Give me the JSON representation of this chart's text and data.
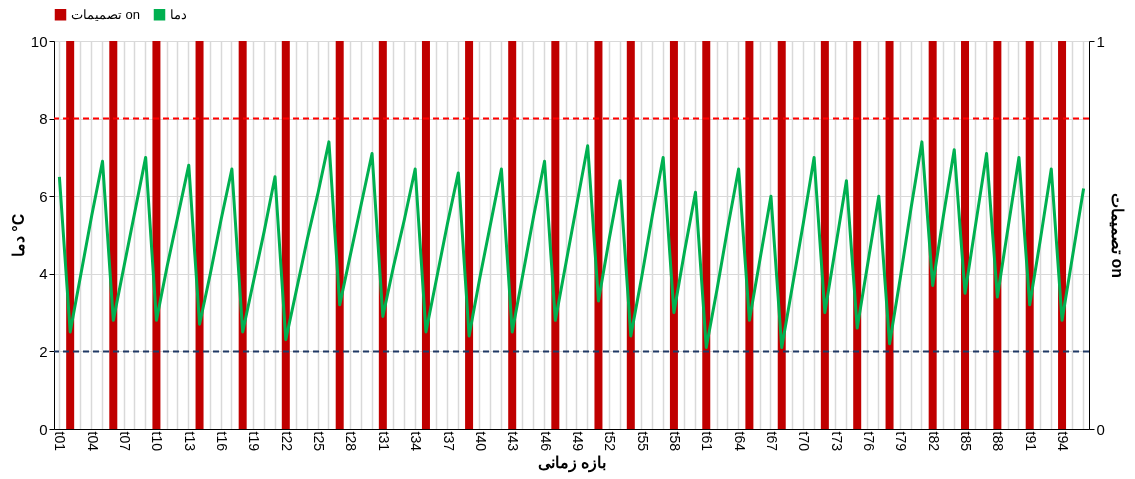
{
  "chart_data": {
    "type": "bar",
    "categories": [
      "t01",
      null,
      null,
      "t04",
      null,
      null,
      "t07",
      null,
      null,
      "t10",
      null,
      null,
      "t13",
      null,
      null,
      "t16",
      null,
      null,
      "t19",
      null,
      null,
      "t22",
      null,
      null,
      "t25",
      null,
      null,
      "t28",
      null,
      null,
      "t31",
      null,
      null,
      "t34",
      null,
      null,
      "t37",
      null,
      null,
      "t40",
      null,
      null,
      "t43",
      null,
      null,
      "t46",
      null,
      null,
      "t49",
      null,
      null,
      "t52",
      null,
      null,
      "t55",
      null,
      null,
      "t58",
      null,
      null,
      "t61",
      null,
      null,
      "t64",
      null,
      null,
      "t67",
      null,
      null,
      "t70",
      null,
      null,
      "t73",
      null,
      null,
      "t76",
      null,
      null,
      "t79",
      null,
      null,
      "t82",
      null,
      null,
      "t85",
      null,
      null,
      "t88",
      null,
      null,
      "t91",
      null,
      null,
      "t94",
      null,
      null
    ],
    "series": [
      {
        "name": "تصمیمات on",
        "axis": "y2",
        "color": "#c00000",
        "values": [
          0,
          1,
          0,
          0,
          0,
          1,
          0,
          0,
          0,
          1,
          0,
          0,
          0,
          1,
          0,
          0,
          0,
          1,
          0,
          0,
          0,
          1,
          0,
          0,
          0,
          0,
          1,
          0,
          0,
          0,
          1,
          0,
          0,
          0,
          1,
          0,
          0,
          0,
          1,
          0,
          0,
          0,
          1,
          0,
          0,
          0,
          1,
          0,
          0,
          0,
          1,
          0,
          0,
          1,
          0,
          0,
          0,
          1,
          0,
          0,
          1,
          0,
          0,
          0,
          1,
          0,
          0,
          1,
          0,
          0,
          0,
          1,
          0,
          0,
          1,
          0,
          0,
          1,
          0,
          0,
          0,
          1,
          0,
          0,
          1,
          0,
          0,
          1,
          0,
          0,
          1,
          0,
          0,
          1,
          0,
          0
        ]
      },
      {
        "name": "دما",
        "type": "line",
        "color": "#00b050",
        "values": [
          6.5,
          2.5,
          4.0,
          5.5,
          6.9,
          2.8,
          4.2,
          5.6,
          7.0,
          2.8,
          4.2,
          5.5,
          6.8,
          2.7,
          4.0,
          5.4,
          6.7,
          2.5,
          3.8,
          5.1,
          6.5,
          2.3,
          3.6,
          4.9,
          6.1,
          7.4,
          3.2,
          4.5,
          5.8,
          7.1,
          2.9,
          4.2,
          5.4,
          6.7,
          2.5,
          3.9,
          5.3,
          6.6,
          2.4,
          3.9,
          5.3,
          6.7,
          2.5,
          4.0,
          5.5,
          6.9,
          2.8,
          4.3,
          5.8,
          7.3,
          3.3,
          4.9,
          6.4,
          2.4,
          3.9,
          5.5,
          7.0,
          3.0,
          4.6,
          6.1,
          2.1,
          3.6,
          5.2,
          6.7,
          2.8,
          4.4,
          6.0,
          2.1,
          3.7,
          5.3,
          7.0,
          3.0,
          4.7,
          6.4,
          2.6,
          4.3,
          6.0,
          2.2,
          3.9,
          5.7,
          7.4,
          3.7,
          5.5,
          7.2,
          3.5,
          5.3,
          7.1,
          3.4,
          5.2,
          7.0,
          3.2,
          4.9,
          6.7,
          2.8,
          4.5,
          6.2
        ]
      }
    ],
    "xlabel": "بازه زمانی",
    "ylabel": "دما °C",
    "y2label": "تصمیمات on",
    "ylim": [
      0,
      10
    ],
    "yticks": [
      0,
      2,
      4,
      6,
      8,
      10
    ],
    "y2lim": [
      0,
      1
    ],
    "y2ticks": [
      0,
      1
    ],
    "ref_lines": [
      {
        "axis": "y",
        "value": 8,
        "color": "#ff0000",
        "line_style": "dashed"
      },
      {
        "axis": "y",
        "value": 2,
        "color": "#1f3864",
        "line_style": "dashed"
      }
    ],
    "grid": true,
    "legend": "top",
    "line_style": "solid",
    "marker": "none"
  }
}
